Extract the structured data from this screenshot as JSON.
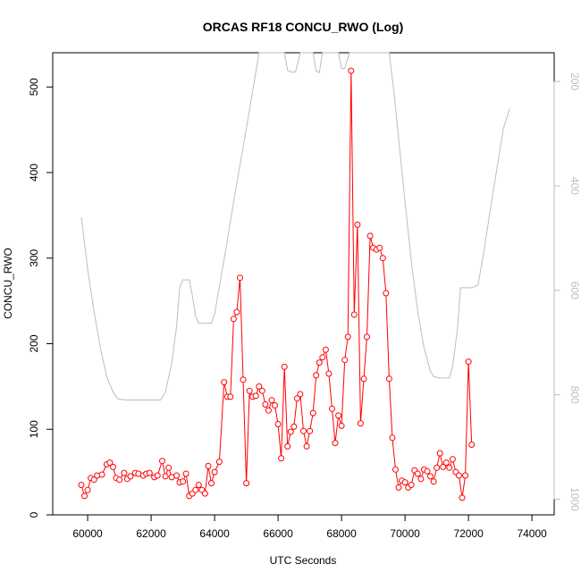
{
  "chart_data": {
    "type": "line",
    "title": "ORCAS RF18 CONCU_RWO (Log)",
    "xlabel": "UTC Seconds",
    "ylabel": "CONCU_RWO",
    "xlim": [
      58900,
      74700
    ],
    "ylim": [
      0,
      540
    ],
    "x_ticks": [
      60000,
      62000,
      64000,
      66000,
      68000,
      70000,
      72000,
      74000
    ],
    "y_ticks": [
      0,
      100,
      200,
      300,
      400,
      500
    ],
    "right_axis": {
      "label": "",
      "ylim": [
        1030,
        145
      ],
      "ticks": [
        200,
        400,
        600,
        800,
        1000
      ],
      "color": "#bdbdbd"
    },
    "series": [
      {
        "color": "#ff0000",
        "style": "line-with-open-circles",
        "points": [
          [
            59800,
            35
          ],
          [
            59900,
            22
          ],
          [
            60000,
            29
          ],
          [
            60100,
            43
          ],
          [
            60200,
            41
          ],
          [
            60300,
            46
          ],
          [
            60450,
            47
          ],
          [
            60600,
            59
          ],
          [
            60700,
            61
          ],
          [
            60800,
            56
          ],
          [
            60900,
            43
          ],
          [
            61000,
            41
          ],
          [
            61150,
            49
          ],
          [
            61250,
            42
          ],
          [
            61350,
            45
          ],
          [
            61500,
            49
          ],
          [
            61600,
            48
          ],
          [
            61750,
            46
          ],
          [
            61850,
            48
          ],
          [
            61950,
            49
          ],
          [
            62100,
            44
          ],
          [
            62200,
            46
          ],
          [
            62350,
            63
          ],
          [
            62450,
            45
          ],
          [
            62550,
            55
          ],
          [
            62650,
            44
          ],
          [
            62800,
            46
          ],
          [
            62900,
            38
          ],
          [
            63000,
            39
          ],
          [
            63100,
            48
          ],
          [
            63200,
            22
          ],
          [
            63300,
            25
          ],
          [
            63400,
            29
          ],
          [
            63500,
            35
          ],
          [
            63600,
            29
          ],
          [
            63700,
            25
          ],
          [
            63800,
            57
          ],
          [
            63900,
            37
          ],
          [
            64000,
            50
          ],
          [
            64150,
            62
          ],
          [
            64300,
            155
          ],
          [
            64400,
            138
          ],
          [
            64500,
            138
          ],
          [
            64600,
            229
          ],
          [
            64700,
            237
          ],
          [
            64800,
            277
          ],
          [
            64900,
            158
          ],
          [
            65000,
            37
          ],
          [
            65100,
            145
          ],
          [
            65200,
            138
          ],
          [
            65300,
            139
          ],
          [
            65400,
            150
          ],
          [
            65500,
            145
          ],
          [
            65600,
            129
          ],
          [
            65700,
            122
          ],
          [
            65800,
            134
          ],
          [
            65900,
            128
          ],
          [
            66000,
            106
          ],
          [
            66100,
            66
          ],
          [
            66200,
            173
          ],
          [
            66300,
            80
          ],
          [
            66400,
            97
          ],
          [
            66500,
            103
          ],
          [
            66600,
            136
          ],
          [
            66700,
            141
          ],
          [
            66800,
            98
          ],
          [
            66900,
            80
          ],
          [
            67000,
            98
          ],
          [
            67100,
            119
          ],
          [
            67200,
            163
          ],
          [
            67300,
            178
          ],
          [
            67400,
            184
          ],
          [
            67500,
            193
          ],
          [
            67600,
            165
          ],
          [
            67700,
            124
          ],
          [
            67800,
            84
          ],
          [
            67900,
            116
          ],
          [
            68000,
            104
          ],
          [
            68100,
            181
          ],
          [
            68200,
            208
          ],
          [
            68300,
            519
          ],
          [
            68400,
            234
          ],
          [
            68500,
            339
          ],
          [
            68600,
            107
          ],
          [
            68700,
            159
          ],
          [
            68800,
            208
          ],
          [
            68900,
            326
          ],
          [
            69000,
            312
          ],
          [
            69100,
            310
          ],
          [
            69200,
            312
          ],
          [
            69300,
            300
          ],
          [
            69400,
            259
          ],
          [
            69500,
            159
          ],
          [
            69600,
            90
          ],
          [
            69700,
            53
          ],
          [
            69800,
            32
          ],
          [
            69900,
            40
          ],
          [
            70000,
            38
          ],
          [
            70100,
            32
          ],
          [
            70200,
            35
          ],
          [
            70300,
            52
          ],
          [
            70400,
            48
          ],
          [
            70500,
            42
          ],
          [
            70600,
            53
          ],
          [
            70700,
            51
          ],
          [
            70800,
            45
          ],
          [
            70900,
            39
          ],
          [
            71000,
            55
          ],
          [
            71100,
            72
          ],
          [
            71200,
            56
          ],
          [
            71300,
            61
          ],
          [
            71400,
            55
          ],
          [
            71500,
            65
          ],
          [
            71600,
            50
          ],
          [
            71700,
            46
          ],
          [
            71800,
            20
          ],
          [
            71900,
            46
          ],
          [
            72000,
            179
          ],
          [
            72100,
            82
          ]
        ]
      },
      {
        "color": "#bdbdbd",
        "style": "line",
        "axis": "right",
        "points": [
          [
            59800,
            460
          ],
          [
            60000,
            560
          ],
          [
            60200,
            640
          ],
          [
            60400,
            710
          ],
          [
            60600,
            765
          ],
          [
            60800,
            795
          ],
          [
            60950,
            808
          ],
          [
            61200,
            810
          ],
          [
            61800,
            810
          ],
          [
            62300,
            810
          ],
          [
            62450,
            795
          ],
          [
            62650,
            740
          ],
          [
            62800,
            670
          ],
          [
            62900,
            595
          ],
          [
            63000,
            580
          ],
          [
            63200,
            580
          ],
          [
            63300,
            610
          ],
          [
            63400,
            650
          ],
          [
            63500,
            663
          ],
          [
            63900,
            663
          ],
          [
            64000,
            645
          ],
          [
            64200,
            575
          ],
          [
            64400,
            505
          ],
          [
            64600,
            430
          ],
          [
            64800,
            360
          ],
          [
            65000,
            290
          ],
          [
            65200,
            218
          ],
          [
            65400,
            145
          ],
          [
            66200,
            145
          ],
          [
            66300,
            178
          ],
          [
            66400,
            182
          ],
          [
            66550,
            182
          ],
          [
            66700,
            145
          ],
          [
            67100,
            145
          ],
          [
            67200,
            180
          ],
          [
            67300,
            183
          ],
          [
            67400,
            145
          ],
          [
            67900,
            145
          ],
          [
            68000,
            175
          ],
          [
            68100,
            175
          ],
          [
            68250,
            145
          ],
          [
            69500,
            145
          ],
          [
            69650,
            220
          ],
          [
            69800,
            310
          ],
          [
            70000,
            430
          ],
          [
            70200,
            545
          ],
          [
            70400,
            640
          ],
          [
            70600,
            710
          ],
          [
            70800,
            755
          ],
          [
            70900,
            765
          ],
          [
            71100,
            768
          ],
          [
            71400,
            768
          ],
          [
            71500,
            745
          ],
          [
            71650,
            675
          ],
          [
            71750,
            595
          ],
          [
            71950,
            595
          ],
          [
            72100,
            595
          ],
          [
            72300,
            590
          ],
          [
            72500,
            520
          ],
          [
            72700,
            440
          ],
          [
            72900,
            365
          ],
          [
            73100,
            290
          ],
          [
            73300,
            252
          ]
        ]
      }
    ]
  }
}
